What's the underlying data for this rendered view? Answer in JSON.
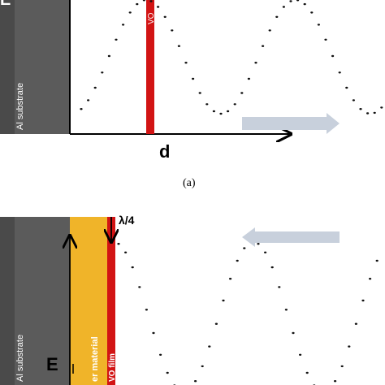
{
  "panel_a": {
    "substrate_label": "Al substrate",
    "film_label": "VO",
    "axis_label": "d",
    "caption": "(a)"
  },
  "panel_b": {
    "substrate_label": "Al substrate",
    "layer_label": "er material",
    "film_label": "VO film",
    "field_label": "E",
    "quarter_wave_label": "λ/4"
  },
  "colors": {
    "substrate": "#5a5a5a",
    "film": "#d21414",
    "layer": "#f0b429",
    "arrow": "#c8d0dc"
  },
  "icons": [
    "direction-arrow-right",
    "direction-arrow-left",
    "axis-arrow",
    "incident-arrow"
  ]
}
